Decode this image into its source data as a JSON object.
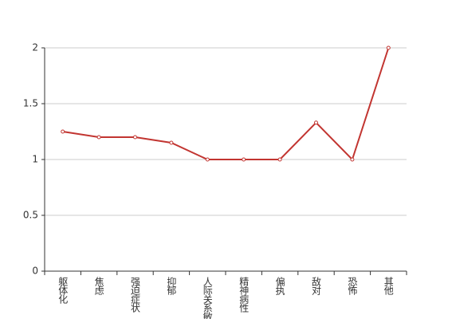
{
  "chart_data": {
    "type": "line",
    "categories": [
      "躯体化",
      "焦虑",
      "强迫症状",
      "抑郁",
      "人际关系敏感",
      "精神病性",
      "偏执",
      "敌对",
      "恐怖",
      "其他"
    ],
    "values": [
      1.25,
      1.2,
      1.2,
      1.15,
      1,
      1,
      1,
      1.33,
      1,
      2
    ],
    "color": "#c23531",
    "ylim": [
      0,
      2
    ],
    "yticks": [
      0,
      0.5,
      1,
      1.5,
      2
    ],
    "grid": true
  }
}
